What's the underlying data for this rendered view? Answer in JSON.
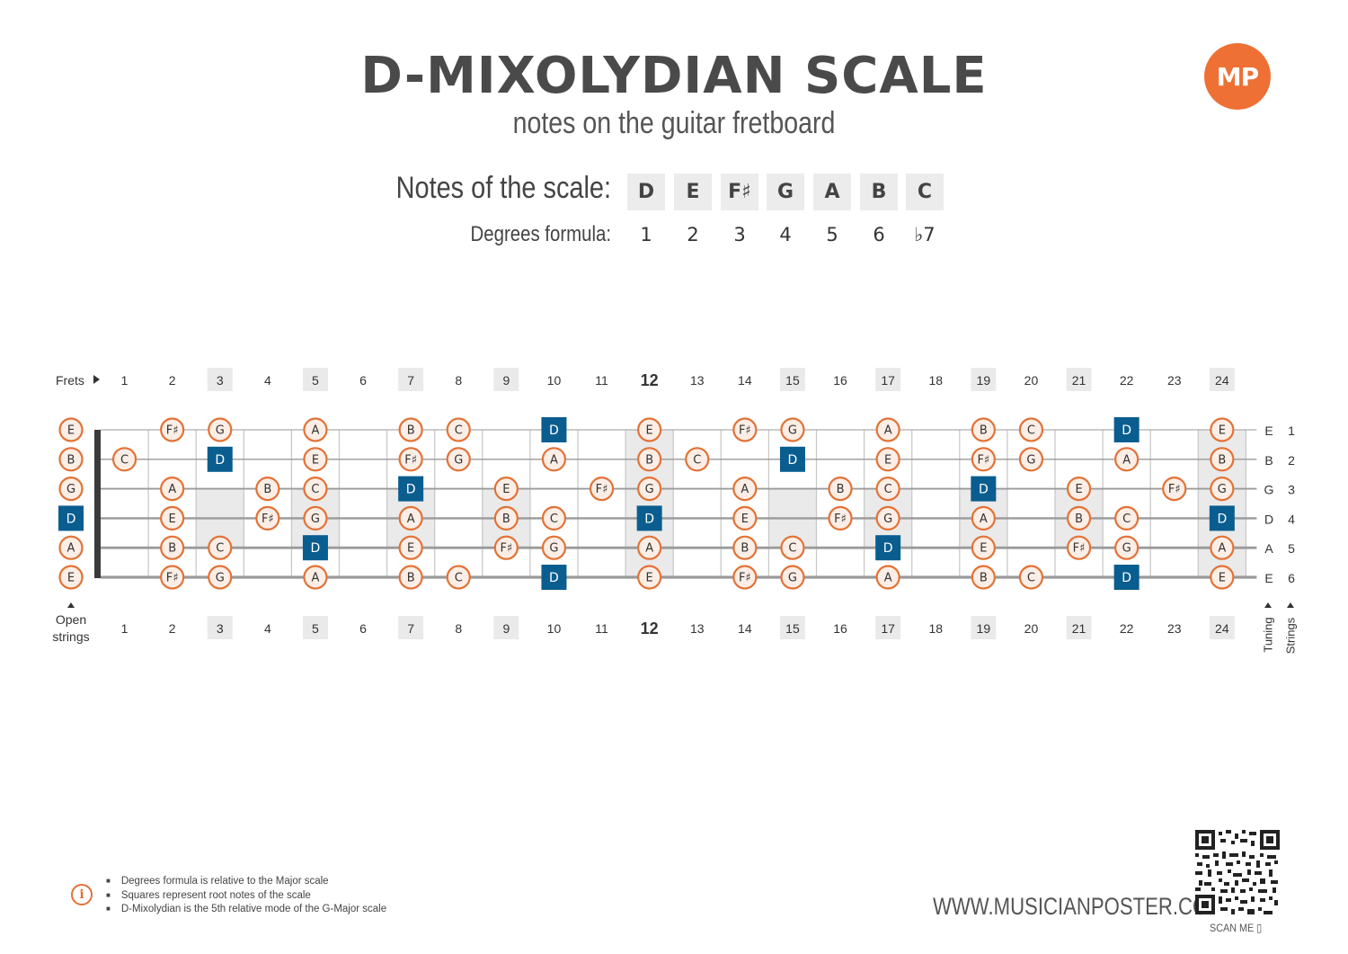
{
  "header": {
    "title": "D-MIXOLYDIAN SCALE",
    "subtitle": "notes on the guitar fretboard",
    "logo_text": "MP"
  },
  "scale": {
    "notes_label": "Notes of the scale:",
    "degrees_label": "Degrees formula:",
    "notes": [
      "D",
      "E",
      "F♯",
      "G",
      "A",
      "B",
      "C"
    ],
    "degrees": [
      "1",
      "2",
      "3",
      "4",
      "5",
      "6",
      "♭7"
    ]
  },
  "fretboard": {
    "frets_label": "Frets",
    "frets_arrow_icon": "triangle-right-icon",
    "open_strings_label_line1": "Open",
    "open_strings_label_line2": "strings",
    "tuning_label": "Tuning",
    "strings_label": "Strings",
    "fret_numbers": [
      "1",
      "2",
      "3",
      "4",
      "5",
      "6",
      "7",
      "8",
      "9",
      "10",
      "11",
      "12",
      "13",
      "14",
      "15",
      "16",
      "17",
      "18",
      "19",
      "20",
      "21",
      "22",
      "23",
      "24"
    ],
    "marker_frets": [
      3,
      5,
      7,
      9,
      12,
      15,
      17,
      19,
      21,
      24
    ],
    "bold_fret": 12,
    "root_note": "D",
    "colors": {
      "note_circle_border": "#e27236",
      "note_circle_fill": "#fbeee6",
      "root_square": "#0a5d8f",
      "marker_shade": "#eaeaea",
      "string": "#9a9a9a",
      "nut": "#3a3a3a"
    },
    "strings": [
      {
        "tuning": "E",
        "number": "1",
        "notes": [
          "E",
          "",
          "F♯",
          "G",
          "",
          "A",
          "",
          "B",
          "C",
          "",
          "D",
          "",
          "E",
          "",
          "F♯",
          "G",
          "",
          "A",
          "",
          "B",
          "C",
          "",
          "D",
          "",
          "E"
        ]
      },
      {
        "tuning": "B",
        "number": "2",
        "notes": [
          "B",
          "C",
          "",
          "D",
          "",
          "E",
          "",
          "F♯",
          "G",
          "",
          "A",
          "",
          "B",
          "C",
          "",
          "D",
          "",
          "E",
          "",
          "F♯",
          "G",
          "",
          "A",
          "",
          "B"
        ]
      },
      {
        "tuning": "G",
        "number": "3",
        "notes": [
          "G",
          "",
          "A",
          "",
          "B",
          "C",
          "",
          "D",
          "",
          "E",
          "",
          "F♯",
          "G",
          "",
          "A",
          "",
          "B",
          "C",
          "",
          "D",
          "",
          "E",
          "",
          "F♯",
          "G"
        ]
      },
      {
        "tuning": "D",
        "number": "4",
        "notes": [
          "D",
          "",
          "E",
          "",
          "F♯",
          "G",
          "",
          "A",
          "",
          "B",
          "C",
          "",
          "D",
          "",
          "E",
          "",
          "F♯",
          "G",
          "",
          "A",
          "",
          "B",
          "C",
          "",
          "D"
        ]
      },
      {
        "tuning": "A",
        "number": "5",
        "notes": [
          "A",
          "",
          "B",
          "C",
          "",
          "D",
          "",
          "E",
          "",
          "F♯",
          "G",
          "",
          "A",
          "",
          "B",
          "C",
          "",
          "D",
          "",
          "E",
          "",
          "F♯",
          "G",
          "",
          "A"
        ]
      },
      {
        "tuning": "E",
        "number": "6",
        "notes": [
          "E",
          "",
          "F♯",
          "G",
          "",
          "A",
          "",
          "B",
          "C",
          "",
          "D",
          "",
          "E",
          "",
          "F♯",
          "G",
          "",
          "A",
          "",
          "B",
          "C",
          "",
          "D",
          "",
          "E"
        ]
      }
    ]
  },
  "footer": {
    "info_icon": "info-icon",
    "notes": [
      "Degrees formula is relative to the Major scale",
      "Squares represent root notes of the scale",
      "D-Mixolydian is the 5th relative mode of the G-Major scale"
    ],
    "website": "WWW.MUSICIANPOSTER.COM",
    "qr_icon": "qr-code-icon",
    "scan_label": "SCAN ME",
    "phone_icon": "phone-icon"
  }
}
